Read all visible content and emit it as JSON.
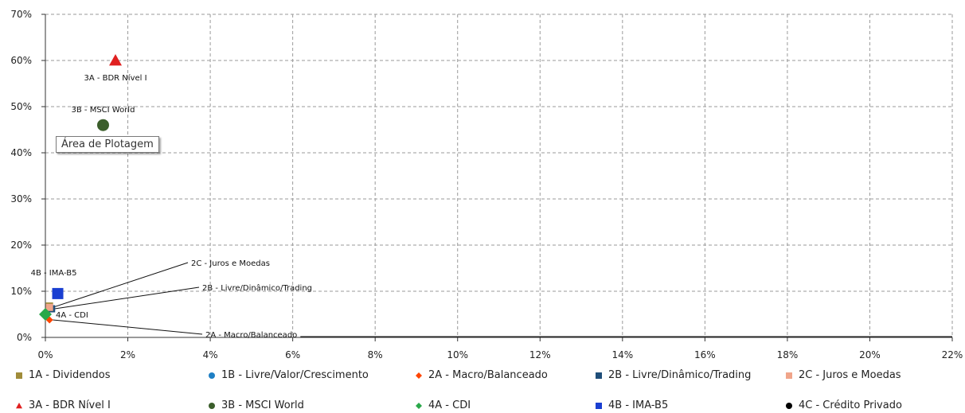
{
  "chart_data": {
    "type": "scatter",
    "title": "",
    "xlabel": "",
    "ylabel": "",
    "xlim": [
      0,
      22
    ],
    "ylim": [
      0,
      70
    ],
    "x_ticks": [
      "0%",
      "2%",
      "4%",
      "6%",
      "8%",
      "10%",
      "12%",
      "14%",
      "16%",
      "18%",
      "20%",
      "22%"
    ],
    "y_ticks": [
      "0%",
      "10%",
      "20%",
      "30%",
      "40%",
      "50%",
      "60%",
      "70%"
    ],
    "grid": true,
    "legend_position": "bottom",
    "series": [
      {
        "name": "1A - Dividendos",
        "marker": "square",
        "color": "#a08c3a",
        "points": [
          {
            "x": 0.1,
            "y": 6.8
          }
        ]
      },
      {
        "name": "1B - Livre/Valor/Crescimento",
        "marker": "circle",
        "color": "#1f7fc4",
        "points": [
          {
            "x": 0.12,
            "y": 6.5
          }
        ]
      },
      {
        "name": "2A - Macro/Balanceado",
        "marker": "diamond",
        "color": "#ff4500",
        "points": [
          {
            "x": 0.1,
            "y": 3.8
          }
        ],
        "label": "2A - Macro/Balanceado"
      },
      {
        "name": "2B - Livre/Dinâmico/Trading",
        "marker": "square",
        "color": "#1f4e79",
        "points": [
          {
            "x": 0.15,
            "y": 6.2
          }
        ],
        "label": "2B - Livre/Dinâmico/Trading"
      },
      {
        "name": "2C - Juros e Moedas",
        "marker": "square",
        "color": "#f0a58a",
        "points": [
          {
            "x": 0.1,
            "y": 6.5
          }
        ],
        "label": "2C - Juros e Moedas"
      },
      {
        "name": "3A - BDR Nível I",
        "marker": "triangle",
        "color": "#e02020",
        "points": [
          {
            "x": 1.7,
            "y": 60
          }
        ],
        "label": "3A - BDR Nível I"
      },
      {
        "name": "3B - MSCI World",
        "marker": "circle",
        "color": "#3b5e2b",
        "points": [
          {
            "x": 1.4,
            "y": 46
          }
        ],
        "label": "3B - MSCI World"
      },
      {
        "name": "4A - CDI",
        "marker": "diamond",
        "color": "#2aa84a",
        "points": [
          {
            "x": 0.0,
            "y": 5.0
          }
        ],
        "label": "4A - CDI"
      },
      {
        "name": "4B - IMA-B5",
        "marker": "square",
        "color": "#1a3fd1",
        "points": [
          {
            "x": 0.3,
            "y": 9.5
          }
        ],
        "label": "4B - IMA-B5"
      },
      {
        "name": "4C - Crédito Privado",
        "marker": "circle",
        "color": "#000000",
        "points": []
      }
    ]
  },
  "tooltip": "Área de Plotagem"
}
